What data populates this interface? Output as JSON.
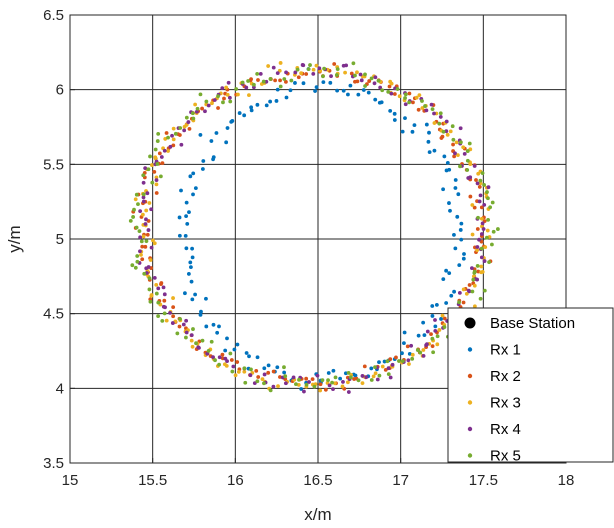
{
  "chart_data": {
    "type": "scatter",
    "title": "",
    "xlabel": "x/m",
    "ylabel": "y/m",
    "xlim": [
      15,
      18
    ],
    "ylim": [
      3.5,
      6.5
    ],
    "xticks": [
      "15",
      "15.5",
      "16",
      "16.5",
      "17",
      "17.5",
      "18"
    ],
    "yticks": [
      "3.5",
      "4",
      "4.5",
      "5",
      "5.5",
      "6",
      "6.5"
    ],
    "grid": true,
    "legend_position": "bottom-right",
    "base_station": {
      "name": "Base Station",
      "color": "#000000"
    },
    "series": [
      {
        "name": "Rx 1",
        "color": "#0072BD",
        "center": [
          16.52,
          5.04
        ],
        "rx": 0.83,
        "ry": 0.98,
        "jitter": 0.035,
        "count": 150,
        "seed": 11
      },
      {
        "name": "Rx 2",
        "color": "#D95319",
        "center": [
          16.47,
          5.08
        ],
        "rx": 1.03,
        "ry": 1.04,
        "jitter": 0.025,
        "count": 170,
        "seed": 23
      },
      {
        "name": "Rx 3",
        "color": "#EDB120",
        "center": [
          16.47,
          5.07
        ],
        "rx": 1.04,
        "ry": 1.05,
        "jitter": 0.03,
        "count": 170,
        "seed": 37
      },
      {
        "name": "Rx 4",
        "color": "#7E2F8E",
        "center": [
          16.47,
          5.08
        ],
        "rx": 1.03,
        "ry": 1.05,
        "jitter": 0.028,
        "count": 160,
        "seed": 41
      },
      {
        "name": "Rx 5",
        "color": "#77AC30",
        "center": [
          16.47,
          5.08
        ],
        "rx": 1.06,
        "ry": 1.05,
        "jitter": 0.032,
        "count": 160,
        "seed": 53
      }
    ]
  }
}
